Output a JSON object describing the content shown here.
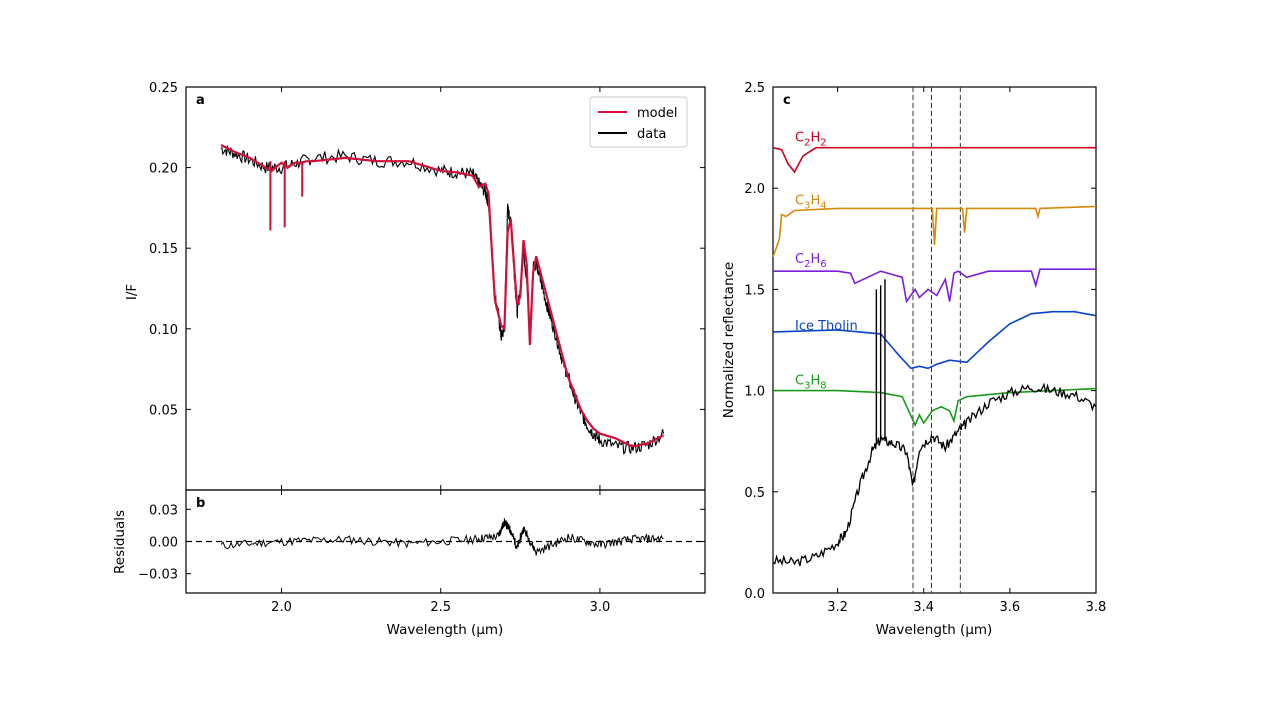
{
  "chart_data": [
    {
      "panel": "a",
      "type": "line",
      "xlabel": "",
      "ylabel": "I/F",
      "xlim": [
        1.7,
        3.33
      ],
      "ylim": [
        0.0,
        0.25
      ],
      "xticks": [
        "2.0",
        "2.5",
        "3.0"
      ],
      "yticks": [
        "0.05",
        "0.10",
        "0.15",
        "0.20",
        "0.25"
      ],
      "legend": {
        "placement": "top-right",
        "entries": [
          "model",
          "data"
        ]
      },
      "series": [
        {
          "name": "model",
          "color": "#d0103a",
          "x": [
            1.81,
            1.85,
            1.9,
            1.95,
            1.97,
            1.98,
            2.0,
            2.02,
            2.04,
            2.06,
            2.08,
            2.1,
            2.2,
            2.3,
            2.4,
            2.5,
            2.55,
            2.6,
            2.62,
            2.64,
            2.65,
            2.66,
            2.67,
            2.68,
            2.69,
            2.7,
            2.71,
            2.72,
            2.73,
            2.74,
            2.75,
            2.76,
            2.77,
            2.78,
            2.79,
            2.8,
            2.82,
            2.84,
            2.86,
            2.88,
            2.9,
            2.92,
            2.94,
            2.96,
            2.98,
            3.0,
            3.05,
            3.1,
            3.15,
            3.2
          ],
          "y": [
            0.214,
            0.21,
            0.206,
            0.2,
            0.198,
            0.2,
            0.203,
            0.2,
            0.203,
            0.203,
            0.204,
            0.204,
            0.206,
            0.204,
            0.204,
            0.198,
            0.197,
            0.195,
            0.188,
            0.19,
            0.184,
            0.15,
            0.118,
            0.11,
            0.102,
            0.1,
            0.16,
            0.168,
            0.14,
            0.115,
            0.12,
            0.155,
            0.14,
            0.09,
            0.135,
            0.145,
            0.13,
            0.115,
            0.1,
            0.085,
            0.07,
            0.06,
            0.05,
            0.043,
            0.038,
            0.035,
            0.032,
            0.027,
            0.029,
            0.034
          ],
          "absorptions": [
            {
              "x": 1.965,
              "y": 0.161
            },
            {
              "x": 2.01,
              "y": 0.163
            },
            {
              "x": 2.065,
              "y": 0.182
            }
          ]
        },
        {
          "name": "data",
          "color": "#000000",
          "x": [
            1.81,
            1.85,
            1.9,
            1.95,
            2.0,
            2.05,
            2.1,
            2.2,
            2.3,
            2.4,
            2.5,
            2.55,
            2.6,
            2.62,
            2.64,
            2.65,
            2.66,
            2.67,
            2.68,
            2.69,
            2.7,
            2.71,
            2.72,
            2.73,
            2.74,
            2.75,
            2.76,
            2.77,
            2.78,
            2.79,
            2.8,
            2.82,
            2.84,
            2.86,
            2.88,
            2.9,
            2.92,
            2.94,
            2.96,
            2.98,
            3.0,
            3.05,
            3.1,
            3.15,
            3.2
          ],
          "y": [
            0.212,
            0.209,
            0.205,
            0.2,
            0.2,
            0.203,
            0.206,
            0.207,
            0.204,
            0.204,
            0.198,
            0.197,
            0.196,
            0.19,
            0.185,
            0.178,
            0.15,
            0.12,
            0.11,
            0.095,
            0.1,
            0.175,
            0.165,
            0.138,
            0.11,
            0.125,
            0.15,
            0.13,
            0.095,
            0.14,
            0.14,
            0.125,
            0.11,
            0.097,
            0.082,
            0.07,
            0.058,
            0.048,
            0.04,
            0.035,
            0.031,
            0.027,
            0.026,
            0.028,
            0.035
          ]
        }
      ]
    },
    {
      "panel": "b",
      "type": "line",
      "xlabel": "Wavelength (μm)",
      "ylabel": "Residuals",
      "xlim": [
        1.7,
        3.33
      ],
      "ylim": [
        -0.048,
        0.048
      ],
      "xticks": [
        "2.0",
        "2.5",
        "3.0"
      ],
      "yticks": [
        "0.03",
        "0.00",
        "−0.03"
      ],
      "reference_line": 0.0,
      "series": [
        {
          "color": "#000000",
          "x": [
            1.81,
            2.0,
            2.2,
            2.4,
            2.6,
            2.68,
            2.7,
            2.72,
            2.74,
            2.76,
            2.8,
            2.9,
            3.0,
            3.1,
            3.2
          ],
          "y": [
            -0.004,
            0.0,
            0.002,
            -0.002,
            0.002,
            0.005,
            0.018,
            0.01,
            -0.006,
            0.012,
            -0.01,
            0.004,
            -0.003,
            0.002,
            0.003
          ]
        }
      ]
    },
    {
      "panel": "c",
      "type": "line",
      "xlabel": "Wavelength (μm)",
      "ylabel": "Normalized reflectance",
      "xlim": [
        3.05,
        3.8
      ],
      "ylim": [
        0.0,
        2.5
      ],
      "xticks": [
        "3.2",
        "3.4",
        "3.6",
        "3.8"
      ],
      "yticks": [
        "0.0",
        "0.5",
        "1.0",
        "1.5",
        "2.0",
        "2.5"
      ],
      "vlines": [
        3.375,
        3.418,
        3.485
      ],
      "series": [
        {
          "name": "C2H2",
          "label_main": "C",
          "label_parts": [
            "C",
            "2",
            "H",
            "2"
          ],
          "color": "#cc0022",
          "x": [
            3.05,
            3.07,
            3.085,
            3.1,
            3.12,
            3.15,
            3.2,
            3.4,
            3.6,
            3.8
          ],
          "y": [
            2.2,
            2.19,
            2.12,
            2.08,
            2.16,
            2.2,
            2.2,
            2.2,
            2.2,
            2.2
          ]
        },
        {
          "name": "C3H4",
          "label_parts": [
            "C",
            "3",
            "H",
            "4"
          ],
          "color": "#d4890a",
          "x": [
            3.05,
            3.065,
            3.07,
            3.08,
            3.1,
            3.2,
            3.3,
            3.42,
            3.425,
            3.43,
            3.49,
            3.495,
            3.5,
            3.66,
            3.665,
            3.67,
            3.8
          ],
          "y": [
            1.66,
            1.75,
            1.87,
            1.86,
            1.89,
            1.9,
            1.9,
            1.9,
            1.72,
            1.9,
            1.9,
            1.78,
            1.9,
            1.9,
            1.86,
            1.9,
            1.91
          ]
        },
        {
          "name": "C2H6",
          "label_parts": [
            "C",
            "2",
            "H",
            "6"
          ],
          "color": "#7c1ee0",
          "x": [
            3.05,
            3.2,
            3.23,
            3.24,
            3.3,
            3.35,
            3.36,
            3.38,
            3.39,
            3.41,
            3.43,
            3.45,
            3.46,
            3.47,
            3.48,
            3.5,
            3.55,
            3.65,
            3.66,
            3.67,
            3.8
          ],
          "y": [
            1.59,
            1.59,
            1.58,
            1.53,
            1.59,
            1.56,
            1.44,
            1.5,
            1.46,
            1.5,
            1.47,
            1.55,
            1.44,
            1.58,
            1.59,
            1.56,
            1.59,
            1.59,
            1.52,
            1.6,
            1.6
          ]
        },
        {
          "name": "Ice Tholin",
          "label_parts": [
            "Ice Tholin"
          ],
          "color": "#0a44c8",
          "x": [
            3.05,
            3.2,
            3.3,
            3.34,
            3.37,
            3.39,
            3.41,
            3.43,
            3.46,
            3.5,
            3.55,
            3.6,
            3.65,
            3.7,
            3.75,
            3.8
          ],
          "y": [
            1.29,
            1.3,
            1.28,
            1.18,
            1.11,
            1.12,
            1.11,
            1.13,
            1.15,
            1.14,
            1.24,
            1.33,
            1.38,
            1.39,
            1.39,
            1.37
          ]
        },
        {
          "name": "C3H8",
          "label_parts": [
            "C",
            "3",
            "H",
            "8"
          ],
          "color": "#1a9a1a",
          "x": [
            3.05,
            3.2,
            3.3,
            3.35,
            3.38,
            3.39,
            3.4,
            3.42,
            3.44,
            3.46,
            3.47,
            3.48,
            3.5,
            3.6,
            3.7,
            3.8
          ],
          "y": [
            1.0,
            1.0,
            0.99,
            0.97,
            0.83,
            0.88,
            0.84,
            0.9,
            0.92,
            0.9,
            0.85,
            0.95,
            0.97,
            0.99,
            1.0,
            1.01
          ]
        },
        {
          "name": "data",
          "label_parts": [],
          "color": "#000000",
          "x": [
            3.05,
            3.1,
            3.15,
            3.2,
            3.22,
            3.25,
            3.28,
            3.3,
            3.33,
            3.36,
            3.375,
            3.39,
            3.42,
            3.45,
            3.48,
            3.5,
            3.55,
            3.6,
            3.65,
            3.7,
            3.75,
            3.8
          ],
          "y": [
            0.16,
            0.15,
            0.18,
            0.25,
            0.3,
            0.52,
            0.7,
            0.76,
            0.74,
            0.7,
            0.52,
            0.72,
            0.78,
            0.72,
            0.8,
            0.84,
            0.94,
            0.99,
            1.02,
            1.0,
            0.98,
            0.92
          ],
          "spikes": [
            {
              "x": 3.29,
              "y": 1.5
            },
            {
              "x": 3.3,
              "y": 1.52
            },
            {
              "x": 3.31,
              "y": 1.55
            }
          ]
        }
      ]
    }
  ]
}
